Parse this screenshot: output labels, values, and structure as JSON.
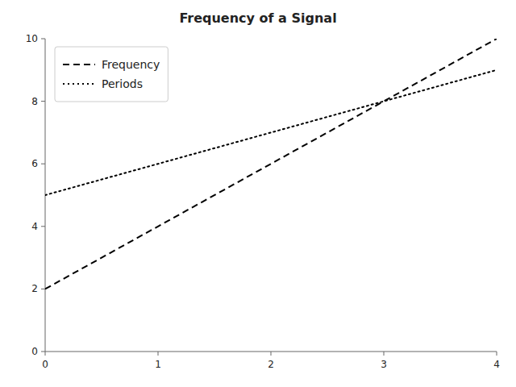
{
  "chart_data": {
    "type": "line",
    "title": "Frequency of a Signal",
    "x": [
      0,
      1,
      2,
      3,
      4
    ],
    "series": [
      {
        "name": "Frequency",
        "color": "black",
        "line_style": "dashed",
        "values": [
          2,
          4,
          6,
          8,
          10
        ]
      },
      {
        "name": "Periods",
        "color": "black",
        "line_style": "dotted",
        "values": [
          5,
          6,
          7,
          8,
          9
        ]
      }
    ],
    "xlim": [
      0,
      4
    ],
    "xticks": [
      0,
      1,
      2,
      3,
      4
    ],
    "ylim": [
      0,
      10
    ],
    "yticks": [
      0,
      2,
      4,
      6,
      8,
      10
    ],
    "grid": false,
    "legend": "upper left"
  }
}
